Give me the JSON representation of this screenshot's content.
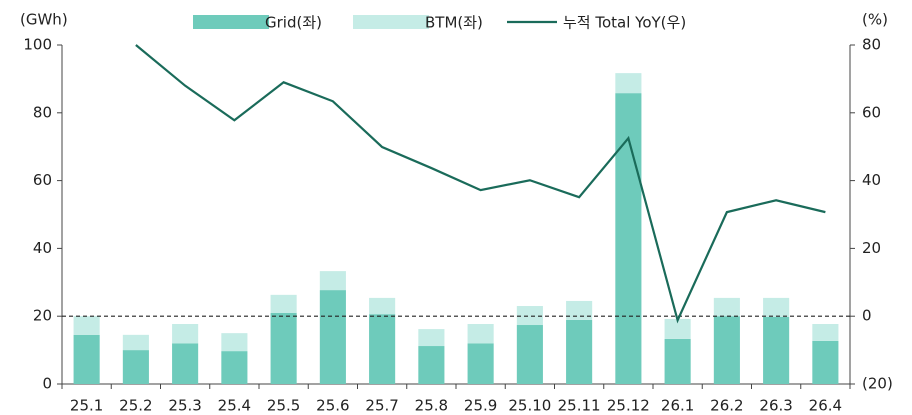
{
  "chart_data": {
    "type": "bar_line",
    "y_label": "(GWh)",
    "y2_label": "(%)",
    "categories": [
      "25.1",
      "25.2",
      "25.3",
      "25.4",
      "25.5",
      "25.6",
      "25.7",
      "25.8",
      "25.9",
      "25.10",
      "25.11",
      "25.12",
      "26.1",
      "26.2",
      "26.3",
      "26.4"
    ],
    "series": [
      {
        "name": "Grid(좌)",
        "color": "#6ecbbb",
        "type": "bar",
        "stack": true,
        "values": [
          14.5,
          10,
          12,
          9.7,
          21,
          27.7,
          20.6,
          11.2,
          12,
          17.4,
          18.9,
          85.8,
          13.3,
          20,
          19.8,
          12.7
        ]
      },
      {
        "name": "BTM(좌)",
        "color": "#c5ece6",
        "type": "bar",
        "stack": true,
        "values": [
          5.5,
          4.5,
          5.7,
          5.3,
          5.3,
          5.6,
          4.8,
          5,
          5.7,
          5.6,
          5.6,
          5.9,
          5.9,
          5.4,
          5.6,
          5
        ]
      },
      {
        "name": "누적 Total YoY(우)",
        "color": "#1a6b5a",
        "type": "line",
        "axis": "y2",
        "values": [
          null,
          80,
          68,
          57.8,
          69,
          63.4,
          49.9,
          43.7,
          37.2,
          40.1,
          35.1,
          52.5,
          -1.2,
          30.7,
          34.2,
          30.7
        ]
      }
    ],
    "ylim": [
      0,
      100
    ],
    "yticks": [
      0,
      20,
      40,
      60,
      80,
      100
    ],
    "y2lim": [
      -20,
      80
    ],
    "y2ticks": [
      {
        "value": -20,
        "label": "(20)"
      },
      0,
      20,
      40,
      60,
      80
    ],
    "y2_reference_line": 0,
    "legend": "top"
  }
}
